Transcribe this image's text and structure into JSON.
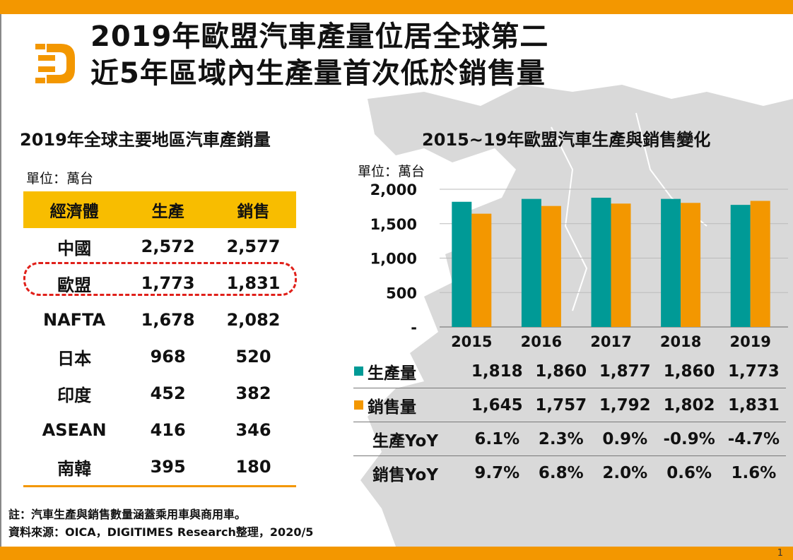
{
  "header": {
    "title_line1": "2019年歐盟汽車產量位居全球第二",
    "title_line2": "近5年區域內生產量首次低於銷售量",
    "logo_icon": "digitimes-d-logo-icon"
  },
  "left_panel": {
    "subtitle": "2019年全球主要地區汽車產銷量",
    "unit": "單位：萬台",
    "columns": [
      "經濟體",
      "生產",
      "銷售"
    ],
    "rows": [
      {
        "economy": "中國",
        "production": "2,572",
        "sales": "2,577"
      },
      {
        "economy": "歐盟",
        "production": "1,773",
        "sales": "1,831"
      },
      {
        "economy": "NAFTA",
        "production": "1,678",
        "sales": "2,082"
      },
      {
        "economy": "日本",
        "production": "968",
        "sales": "520"
      },
      {
        "economy": "印度",
        "production": "452",
        "sales": "382"
      },
      {
        "economy": "ASEAN",
        "production": "416",
        "sales": "346"
      },
      {
        "economy": "南韓",
        "production": "395",
        "sales": "180"
      }
    ],
    "highlight_row": "歐盟"
  },
  "right_panel": {
    "subtitle": "2015~19年歐盟汽車生產與銷售變化",
    "unit": "單位：萬台",
    "table_rows": [
      {
        "label": "生產量",
        "swatch": "#009a96",
        "values": [
          "1,818",
          "1,860",
          "1,877",
          "1,860",
          "1,773"
        ]
      },
      {
        "label": "銷售量",
        "swatch": "#f39700",
        "values": [
          "1,645",
          "1,757",
          "1,792",
          "1,802",
          "1,831"
        ]
      },
      {
        "label": "生產YoY",
        "swatch": null,
        "values": [
          "6.1%",
          "2.3%",
          "0.9%",
          "-0.9%",
          "-4.7%"
        ]
      },
      {
        "label": "銷售YoY",
        "swatch": null,
        "values": [
          "9.7%",
          "6.8%",
          "2.0%",
          "0.6%",
          "1.6%"
        ]
      }
    ]
  },
  "chart_data": {
    "type": "bar",
    "title": "2015~19年歐盟汽車生產與銷售變化",
    "xlabel": "",
    "ylabel": "單位：萬台",
    "categories": [
      "2015",
      "2016",
      "2017",
      "2018",
      "2019"
    ],
    "series": [
      {
        "name": "生產量",
        "color": "#009a96",
        "values": [
          1818,
          1860,
          1877,
          1860,
          1773
        ]
      },
      {
        "name": "銷售量",
        "color": "#f39700",
        "values": [
          1645,
          1757,
          1792,
          1802,
          1831
        ]
      }
    ],
    "ylim": [
      0,
      2000
    ],
    "yticks": [
      0,
      500,
      1000,
      1500,
      2000
    ],
    "ytick_labels": [
      "-",
      "500",
      "1,000",
      "1,500",
      "2,000"
    ],
    "grid": true,
    "legend": "table-below"
  },
  "footer": {
    "note": "註：汽車生產與銷售數量涵蓋乘用車與商用車。",
    "source": "資料來源：OICA，DIGITIMES Research整理，2020/5",
    "page_number": "1"
  }
}
